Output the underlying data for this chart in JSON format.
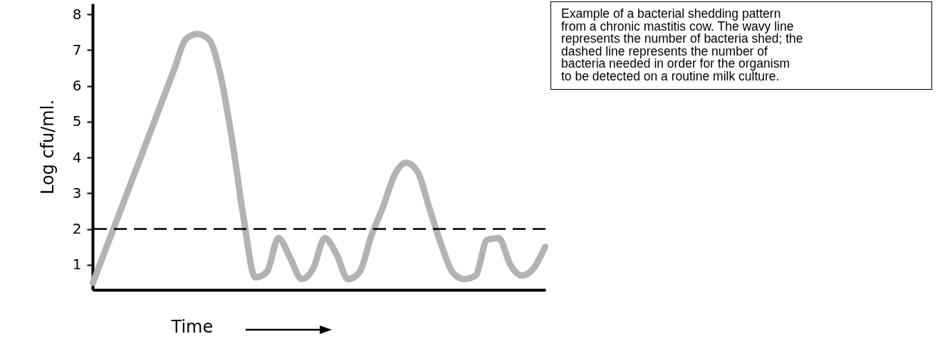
{
  "chart_data": {
    "type": "line",
    "ylabel": "Log cfu/ml.",
    "xlabel": "Time",
    "categories": [
      null,
      null,
      null,
      null,
      null,
      null,
      null,
      null,
      null,
      null,
      null,
      null,
      null,
      null,
      null,
      null,
      null,
      null,
      null,
      null,
      null,
      null,
      null,
      null,
      null,
      null,
      null,
      null,
      null,
      null,
      null,
      null,
      null,
      null,
      null,
      null,
      null,
      null,
      null,
      null
    ],
    "series": [
      {
        "color": "#b3b3b3",
        "values": [
          0.5,
          1.35,
          2.2,
          3.05,
          3.9,
          4.75,
          5.6,
          6.45,
          7.3,
          7.45,
          7.3,
          6.3,
          4.5,
          2.3,
          0.65,
          0.8,
          1.75,
          1.2,
          0.6,
          0.9,
          1.75,
          1.3,
          0.6,
          0.8,
          1.8,
          2.6,
          3.5,
          3.85,
          3.6,
          2.6,
          1.6,
          0.8,
          0.6,
          0.7,
          1.7,
          1.75,
          1.0,
          0.7,
          0.9,
          1.5
        ]
      }
    ],
    "ylim": [
      0.3,
      8.3
    ],
    "yticks": [
      1,
      2,
      3,
      4,
      5,
      6,
      7,
      8
    ],
    "line_style": "solid",
    "ref_lines": [
      {
        "axis": "y",
        "value": 2,
        "color": "#000000",
        "line_style": "dashed"
      }
    ],
    "annotations": [
      "Example of a bacterial shedding pattern from a chronic mastitis cow. The wavy line represents the number of bacteria shed; the dashed line represents the number of bacteria needed in order for the organism to be detected on a routine milk culture."
    ]
  }
}
